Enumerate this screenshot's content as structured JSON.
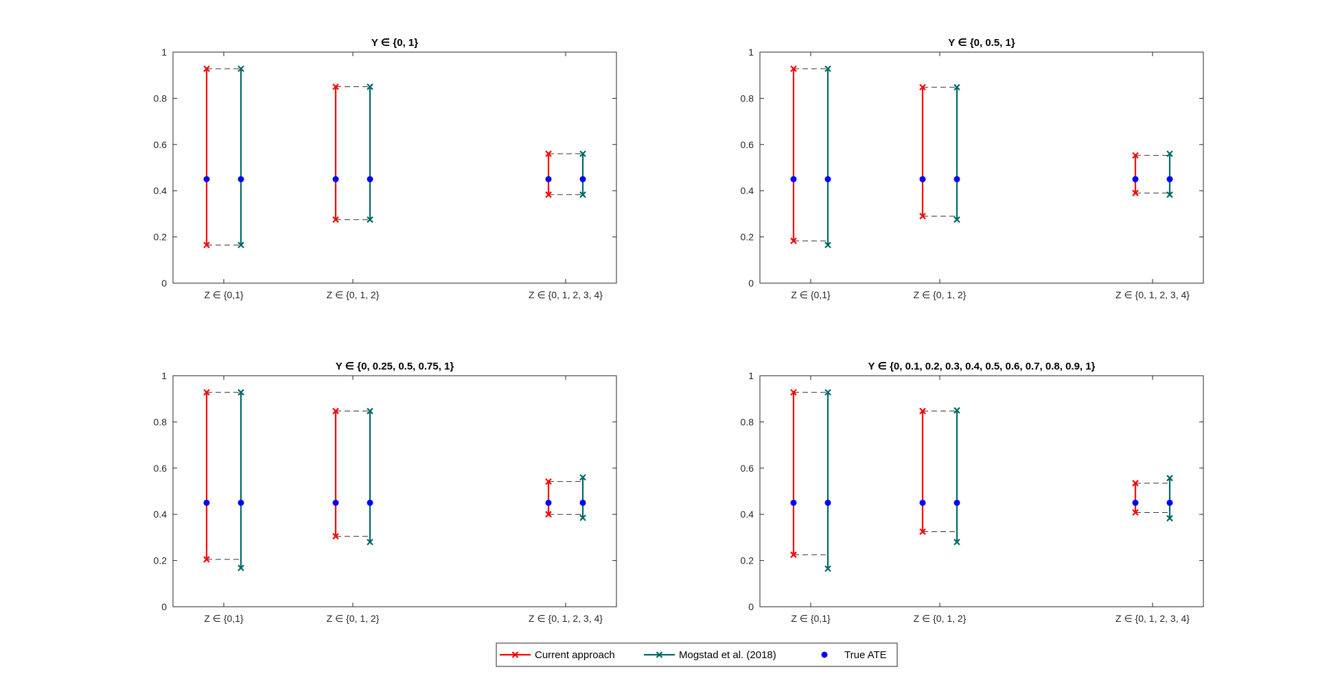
{
  "chart_data": [
    {
      "type": "interval-range",
      "title": "Y ∈ {0, 1}",
      "categories": [
        "Z ∈ {0,1}",
        "Z ∈ {0, 1, 2}",
        "Z ∈ {0, 1, 2, 3, 4}"
      ],
      "ylim": [
        0,
        1
      ],
      "yticks": [
        "0",
        "0.2",
        "0.4",
        "0.6",
        "0.8",
        "1"
      ],
      "series": [
        {
          "name": "Current approach",
          "lower": [
            0.165,
            0.275,
            0.383
          ],
          "upper": [
            0.928,
            0.85,
            0.56
          ]
        },
        {
          "name": "Mogstad et al. (2018)",
          "lower": [
            0.165,
            0.275,
            0.383
          ],
          "upper": [
            0.928,
            0.85,
            0.56
          ]
        }
      ],
      "true_ate": 0.45
    },
    {
      "type": "interval-range",
      "title": "Y ∈ {0, 0.5, 1}",
      "categories": [
        "Z ∈ {0,1}",
        "Z ∈ {0, 1, 2}",
        "Z ∈ {0, 1, 2, 3, 4}"
      ],
      "ylim": [
        0,
        1
      ],
      "yticks": [
        "0",
        "0.2",
        "0.4",
        "0.6",
        "0.8",
        "1"
      ],
      "series": [
        {
          "name": "Current approach",
          "lower": [
            0.183,
            0.29,
            0.39
          ],
          "upper": [
            0.928,
            0.848,
            0.553
          ]
        },
        {
          "name": "Mogstad et al. (2018)",
          "lower": [
            0.165,
            0.275,
            0.383
          ],
          "upper": [
            0.928,
            0.848,
            0.56
          ]
        }
      ],
      "true_ate": 0.45
    },
    {
      "type": "interval-range",
      "title": "Y ∈ {0, 0.25, 0.5, 0.75, 1}",
      "categories": [
        "Z ∈ {0,1}",
        "Z ∈ {0, 1, 2}",
        "Z ∈ {0, 1, 2, 3, 4}"
      ],
      "ylim": [
        0,
        1
      ],
      "yticks": [
        "0",
        "0.2",
        "0.4",
        "0.6",
        "0.8",
        "1"
      ],
      "series": [
        {
          "name": "Current approach",
          "lower": [
            0.205,
            0.305,
            0.4
          ],
          "upper": [
            0.928,
            0.847,
            0.542
          ]
        },
        {
          "name": "Mogstad et al. (2018)",
          "lower": [
            0.168,
            0.28,
            0.385
          ],
          "upper": [
            0.928,
            0.847,
            0.56
          ]
        }
      ],
      "true_ate": 0.45
    },
    {
      "type": "interval-range",
      "title": "Y ∈ {0, 0.1, 0.2, 0.3, 0.4, 0.5, 0.6, 0.7, 0.8, 0.9, 1}",
      "categories": [
        "Z ∈ {0,1}",
        "Z ∈ {0, 1, 2}",
        "Z ∈ {0, 1, 2, 3, 4}"
      ],
      "ylim": [
        0,
        1
      ],
      "yticks": [
        "0",
        "0.2",
        "0.4",
        "0.6",
        "0.8",
        "1"
      ],
      "series": [
        {
          "name": "Current approach",
          "lower": [
            0.225,
            0.325,
            0.408
          ],
          "upper": [
            0.928,
            0.847,
            0.535
          ]
        },
        {
          "name": "Mogstad et al. (2018)",
          "lower": [
            0.165,
            0.28,
            0.383
          ],
          "upper": [
            0.928,
            0.85,
            0.557
          ]
        }
      ],
      "true_ate": 0.45
    }
  ],
  "legend": {
    "items": [
      {
        "label": "Current approach",
        "color": "#ff0000",
        "marker": "x-line"
      },
      {
        "label": "Mogstad et al. (2018)",
        "color": "#006666",
        "marker": "x-line"
      },
      {
        "label": "True ATE",
        "color": "#0000ff",
        "marker": "dot"
      }
    ]
  },
  "colors": {
    "current": "#ff0000",
    "mogstad": "#006666",
    "true_ate": "#0000ff",
    "dashed": "#333333",
    "axis": "#262626"
  }
}
